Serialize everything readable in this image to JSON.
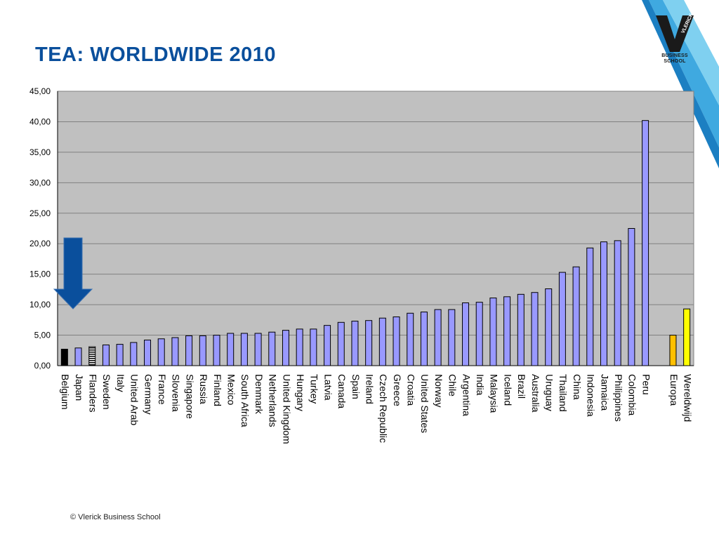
{
  "slide": {
    "title": "TEA: WORLDWIDE 2010",
    "footer": "© Vlerick Business School",
    "logo": {
      "mark_text": "VLERICK",
      "line1": "BUSINESS",
      "line2": "SCHOOL"
    },
    "accent_color": "#0a4f9c",
    "arrow_icon": "down-arrow-icon"
  },
  "chart_data": {
    "type": "bar",
    "title": "",
    "xlabel": "",
    "ylabel": "",
    "ylim": [
      0,
      45
    ],
    "yticks": [
      "0,00",
      "5,00",
      "10,00",
      "15,00",
      "20,00",
      "25,00",
      "30,00",
      "35,00",
      "40,00",
      "45,00"
    ],
    "grid": true,
    "legend": "none",
    "plot_background": "#c0c0c0",
    "categories": [
      "Belgium",
      "Japan",
      "Flanders",
      "Sweden",
      "Italy",
      "United Arab",
      "Germany",
      "France",
      "Slovenia",
      "Singapore",
      "Russia",
      "Finland",
      "Mexico",
      "South Africa",
      "Denmark",
      "Netherlands",
      "United Kingdom",
      "Hungary",
      "Turkey",
      "Latvia",
      "Canada",
      "Spain",
      "Ireland",
      "Czech Republic",
      "Greece",
      "Croatia",
      "United States",
      "Norway",
      "Chile",
      "Argentina",
      "India",
      "Malaysia",
      "Iceland",
      "Brazil",
      "Australia",
      "Uruguay",
      "Thailand",
      "China",
      "Indonesia",
      "Jamaica",
      "Philippines",
      "Colombia",
      "Peru",
      "",
      "Europa",
      "Wereldwijd"
    ],
    "values": [
      2.7,
      2.9,
      3.1,
      3.4,
      3.5,
      3.8,
      4.2,
      4.4,
      4.6,
      4.9,
      4.9,
      5.0,
      5.3,
      5.3,
      5.3,
      5.5,
      5.8,
      6.0,
      6.0,
      6.6,
      7.1,
      7.3,
      7.4,
      7.8,
      8.0,
      8.6,
      8.8,
      9.2,
      9.2,
      10.3,
      10.4,
      11.1,
      11.3,
      11.7,
      12.0,
      12.6,
      15.3,
      16.2,
      19.3,
      20.3,
      20.5,
      22.5,
      40.2,
      null,
      5.0,
      9.3
    ],
    "bar_colors": [
      "#000000",
      "#9999ff",
      "stripe",
      "#9999ff",
      "#9999ff",
      "#9999ff",
      "#9999ff",
      "#9999ff",
      "#9999ff",
      "#9999ff",
      "#9999ff",
      "#9999ff",
      "#9999ff",
      "#9999ff",
      "#9999ff",
      "#9999ff",
      "#9999ff",
      "#9999ff",
      "#9999ff",
      "#9999ff",
      "#9999ff",
      "#9999ff",
      "#9999ff",
      "#9999ff",
      "#9999ff",
      "#9999ff",
      "#9999ff",
      "#9999ff",
      "#9999ff",
      "#9999ff",
      "#9999ff",
      "#9999ff",
      "#9999ff",
      "#9999ff",
      "#9999ff",
      "#9999ff",
      "#9999ff",
      "#9999ff",
      "#9999ff",
      "#9999ff",
      "#9999ff",
      "#9999ff",
      "#9999ff",
      "",
      "#ffc000",
      "#ffff00"
    ]
  }
}
